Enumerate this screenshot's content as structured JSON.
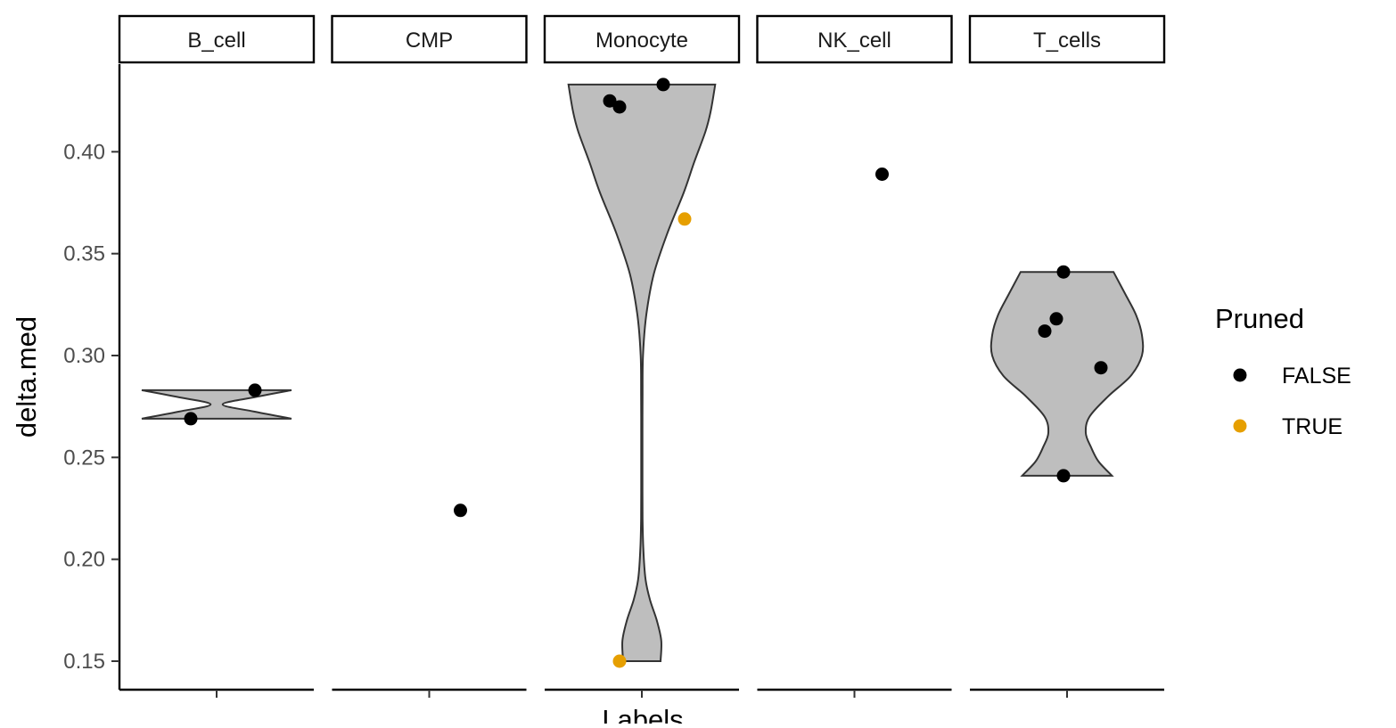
{
  "chart_data": {
    "type": "violin",
    "facet_variable": "Labels",
    "panels": [
      "B_cell",
      "CMP",
      "Monocyte",
      "NK_cell",
      "T_cells"
    ],
    "xlabel": "Labels",
    "ylabel": "delta.med",
    "ylim": [
      0.136,
      0.443
    ],
    "yticks": [
      0.15,
      0.2,
      0.25,
      0.3,
      0.35,
      0.4
    ],
    "ytick_labels": [
      "0.15",
      "0.20",
      "0.25",
      "0.30",
      "0.35",
      "0.40"
    ],
    "grid": false,
    "legend": {
      "title": "Pruned",
      "placement": "right",
      "entries": [
        {
          "label": "FALSE",
          "color": "#000000"
        },
        {
          "label": "TRUE",
          "color": "#E69F00"
        }
      ]
    },
    "violin_fill": "#BEBEBE",
    "violin_stroke": "#333333",
    "violins": [
      {
        "panel": "B_cell",
        "ymin": 0.269,
        "ymax": 0.283,
        "profile": [
          [
            0.269,
            1.0
          ],
          [
            0.2725,
            0.5
          ],
          [
            0.276,
            0.08
          ],
          [
            0.2795,
            0.5
          ],
          [
            0.283,
            1.0
          ]
        ]
      },
      {
        "panel": "Monocyte",
        "ymin": 0.15,
        "ymax": 0.433,
        "profile": [
          [
            0.15,
            0.25
          ],
          [
            0.16,
            0.26
          ],
          [
            0.17,
            0.2
          ],
          [
            0.18,
            0.11
          ],
          [
            0.19,
            0.05
          ],
          [
            0.205,
            0.02
          ],
          [
            0.22,
            0.01
          ],
          [
            0.24,
            0.008
          ],
          [
            0.26,
            0.008
          ],
          [
            0.28,
            0.01
          ],
          [
            0.3,
            0.015
          ],
          [
            0.32,
            0.06
          ],
          [
            0.34,
            0.16
          ],
          [
            0.36,
            0.34
          ],
          [
            0.38,
            0.56
          ],
          [
            0.395,
            0.7
          ],
          [
            0.41,
            0.85
          ],
          [
            0.42,
            0.92
          ],
          [
            0.433,
            0.98
          ]
        ]
      },
      {
        "panel": "T_cells",
        "ymin": 0.241,
        "ymax": 0.341,
        "profile": [
          [
            0.241,
            0.6
          ],
          [
            0.248,
            0.42
          ],
          [
            0.255,
            0.32
          ],
          [
            0.262,
            0.25
          ],
          [
            0.27,
            0.3
          ],
          [
            0.28,
            0.55
          ],
          [
            0.29,
            0.85
          ],
          [
            0.3,
            1.0
          ],
          [
            0.31,
            1.0
          ],
          [
            0.32,
            0.92
          ],
          [
            0.33,
            0.78
          ],
          [
            0.341,
            0.62
          ]
        ]
      }
    ],
    "points": [
      {
        "panel": "B_cell",
        "y": 0.283,
        "offset": 0.43,
        "pruned": "FALSE"
      },
      {
        "panel": "B_cell",
        "y": 0.269,
        "offset": -0.29,
        "pruned": "FALSE"
      },
      {
        "panel": "CMP",
        "y": 0.224,
        "offset": 0.35,
        "pruned": "FALSE"
      },
      {
        "panel": "Monocyte",
        "y": 0.433,
        "offset": 0.24,
        "pruned": "FALSE"
      },
      {
        "panel": "Monocyte",
        "y": 0.425,
        "offset": -0.36,
        "pruned": "FALSE"
      },
      {
        "panel": "Monocyte",
        "y": 0.422,
        "offset": -0.25,
        "pruned": "FALSE"
      },
      {
        "panel": "Monocyte",
        "y": 0.367,
        "offset": 0.48,
        "pruned": "TRUE"
      },
      {
        "panel": "Monocyte",
        "y": 0.15,
        "offset": -0.25,
        "pruned": "TRUE"
      },
      {
        "panel": "NK_cell",
        "y": 0.389,
        "offset": 0.31,
        "pruned": "FALSE"
      },
      {
        "panel": "T_cells",
        "y": 0.341,
        "offset": -0.04,
        "pruned": "FALSE"
      },
      {
        "panel": "T_cells",
        "y": 0.318,
        "offset": -0.12,
        "pruned": "FALSE"
      },
      {
        "panel": "T_cells",
        "y": 0.312,
        "offset": -0.25,
        "pruned": "FALSE"
      },
      {
        "panel": "T_cells",
        "y": 0.294,
        "offset": 0.38,
        "pruned": "FALSE"
      },
      {
        "panel": "T_cells",
        "y": 0.241,
        "offset": -0.04,
        "pruned": "FALSE"
      }
    ]
  }
}
